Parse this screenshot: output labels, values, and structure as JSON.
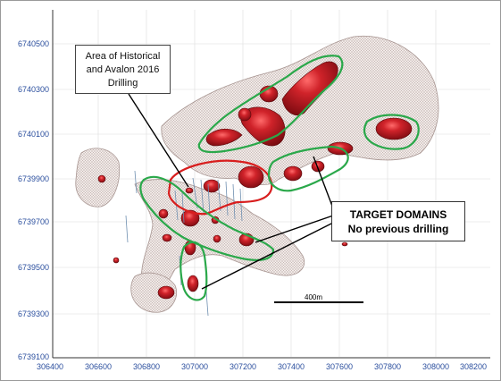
{
  "map": {
    "y_axis_ticks": [
      "6740500",
      "6740300",
      "6740100",
      "6739900",
      "6739700",
      "6739500",
      "6739300",
      "6739100"
    ],
    "x_axis_ticks": [
      "306400",
      "306600",
      "306800",
      "307000",
      "307200",
      "307400",
      "307600",
      "307800",
      "308000",
      "308200"
    ],
    "callout_historical": {
      "line1": "Area of Historical",
      "line2": "and Avalon 2016",
      "line3": "Drilling"
    },
    "callout_targets": {
      "line1": "TARGET DOMAINS",
      "line2": "No previous drilling"
    },
    "scale_bar_label": "400m",
    "colors": {
      "anomaly_body": "#c0151b",
      "anomaly_shell": "#e8d8d2",
      "historical_outline": "#d81e1e",
      "target_outline": "#2aa84a",
      "axis_text": "#2b4f9e",
      "grid": "#d8d8d8"
    }
  }
}
